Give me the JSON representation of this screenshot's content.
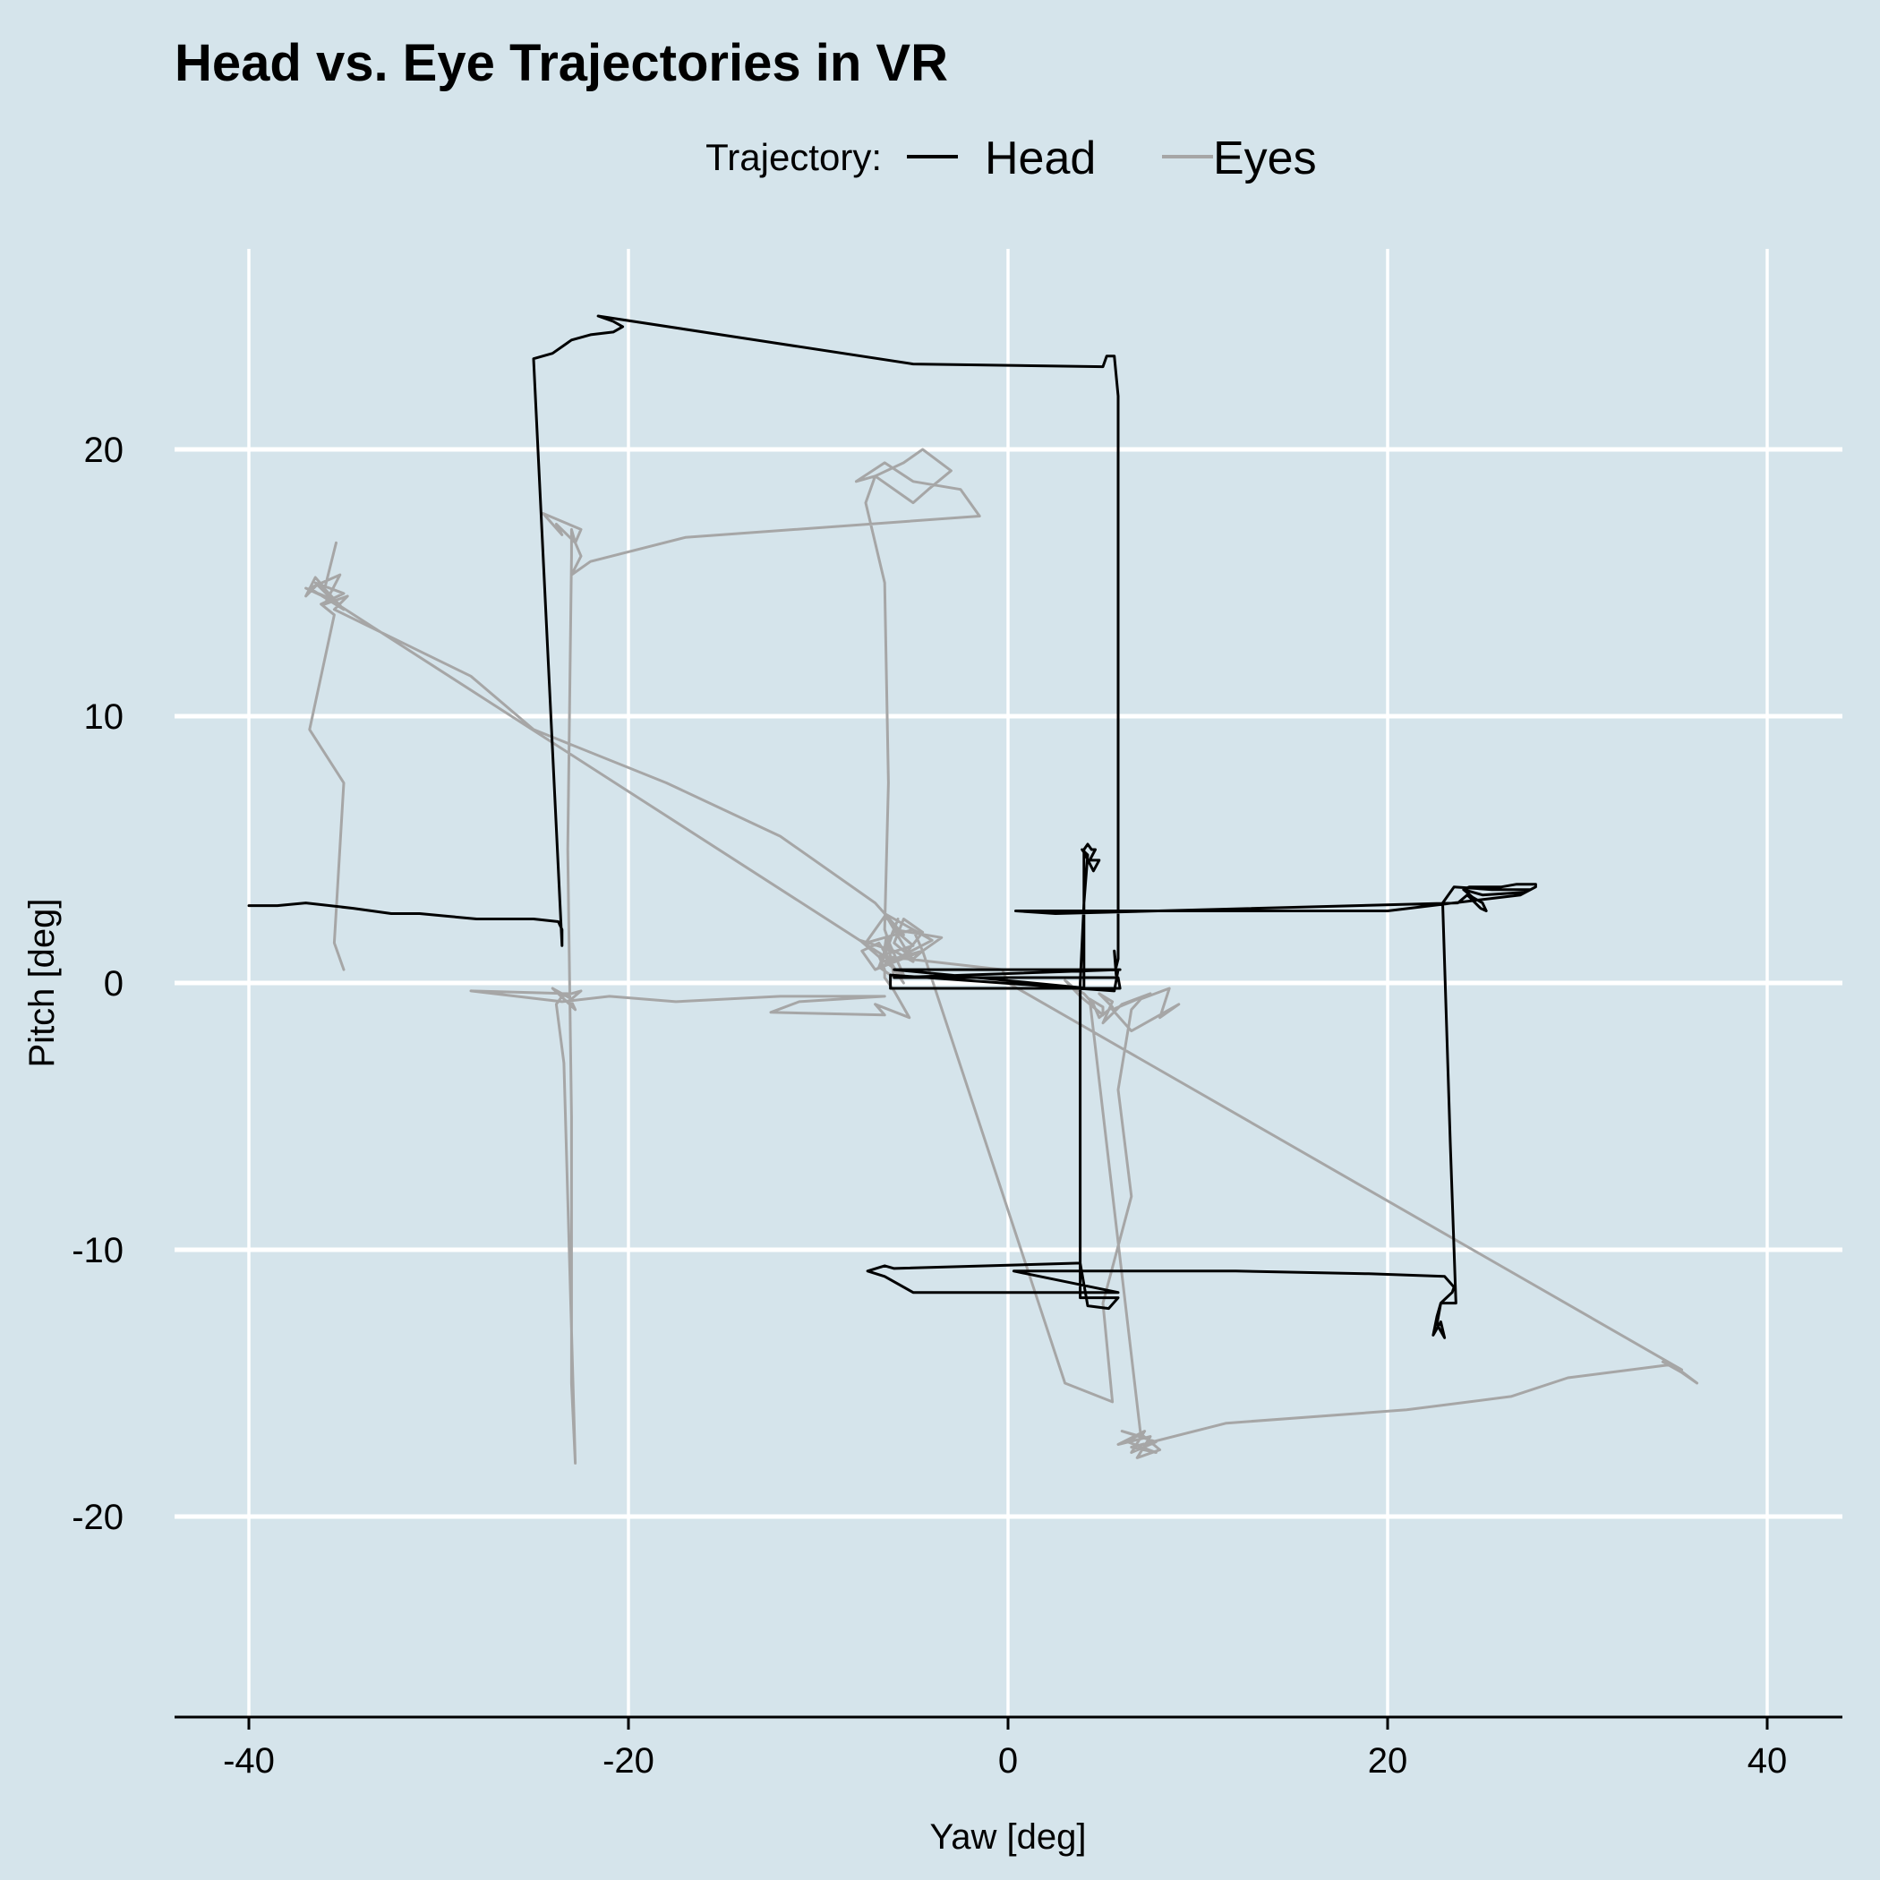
{
  "chart_data": {
    "type": "line",
    "title": "Head vs. Eye Trajectories in VR",
    "xlabel": "Yaw [deg]",
    "ylabel": "Pitch [deg]",
    "xlim": [
      -44,
      44
    ],
    "ylim": [
      -27.5,
      28.5
    ],
    "x_ticks": [
      -40,
      -20,
      0,
      20,
      40
    ],
    "x_tick_labels": [
      "-40",
      "-20",
      "0",
      "20",
      "40"
    ],
    "y_ticks": [
      -20,
      -10,
      0,
      10,
      20
    ],
    "y_tick_labels": [
      "-20",
      "-10",
      "0",
      "10",
      "20"
    ],
    "grid": true,
    "legend": {
      "title": "Trajectory:",
      "position": "top",
      "entries": [
        "Head",
        "Eyes"
      ]
    },
    "series": [
      {
        "name": "Head",
        "color": "#000000",
        "x": [
          -40.0,
          -38.5,
          -37.0,
          -34.5,
          -32.5,
          -31.0,
          -29.5,
          -28.0,
          -26.5,
          -25.0,
          -23.7,
          -23.5,
          -23.5,
          -25.0,
          -24.0,
          -23.0,
          -22.0,
          -20.8,
          -20.3,
          -20.8,
          -21.6,
          -5.0,
          5.0,
          5.2,
          5.6,
          5.8,
          5.8,
          5.8,
          5.8,
          5.8,
          5.8,
          5.7,
          5.6,
          5.7,
          5.8,
          5.6,
          -6.0,
          5.9,
          5.9,
          -6.0,
          5.8,
          5.9,
          -6.2,
          -6.2,
          5.6,
          4.0,
          4.0,
          4.0,
          4.0,
          4.2,
          4.4,
          4.6,
          4.3,
          4.8,
          4.5,
          4.0,
          3.9,
          4.2,
          4.0,
          3.8,
          3.8,
          3.8,
          3.8,
          5.8,
          5.3,
          4.2,
          3.8,
          -6.0,
          -6.5,
          -7.4,
          -6.5,
          -5.0,
          5.8,
          0.3,
          12.0,
          19.0,
          23.0,
          23.5,
          23.4,
          23.1,
          22.8,
          22.6,
          22.4,
          22.8,
          23.0,
          22.6,
          22.8,
          23.6,
          23.3,
          22.9,
          23.5,
          25.5,
          27.5,
          27.2,
          25.0,
          24.0,
          24.5,
          25.0,
          25.2,
          24.9,
          24.2,
          23.7,
          2.5,
          0.4,
          8.0,
          20.0,
          27.0,
          27.8,
          27.8,
          26.8,
          26.0,
          24.3,
          24.0
        ],
        "y": [
          2.9,
          2.9,
          3.0,
          2.8,
          2.6,
          2.6,
          2.5,
          2.4,
          2.4,
          2.4,
          2.3,
          2.0,
          1.4,
          23.4,
          23.6,
          24.1,
          24.3,
          24.4,
          24.6,
          24.8,
          25.0,
          23.2,
          23.1,
          23.5,
          23.5,
          22.0,
          15.0,
          8.0,
          3.0,
          1.5,
          0.9,
          0.6,
          1.2,
          0.3,
          0.5,
          -0.3,
          0.5,
          0.5,
          0.5,
          0.2,
          0.2,
          -0.2,
          -0.2,
          0.3,
          -0.3,
          -0.2,
          2.0,
          4.0,
          5.0,
          5.2,
          5.0,
          5.0,
          4.6,
          4.6,
          4.2,
          4.9,
          5.0,
          4.8,
          3.0,
          0.0,
          -5.0,
          -10.0,
          -11.8,
          -11.8,
          -12.2,
          -12.1,
          -10.5,
          -10.7,
          -10.6,
          -10.8,
          -11.0,
          -11.6,
          -11.6,
          -10.8,
          -10.8,
          -10.9,
          -11.0,
          -11.4,
          -11.6,
          -11.8,
          -12.0,
          -12.5,
          -13.2,
          -12.7,
          -13.3,
          -12.8,
          -12.0,
          -12.0,
          -6.0,
          3.0,
          3.6,
          3.5,
          3.5,
          3.4,
          3.3,
          3.5,
          3.2,
          3.0,
          2.7,
          2.8,
          3.3,
          3.0,
          2.6,
          2.7,
          2.7,
          2.7,
          3.3,
          3.6,
          3.7,
          3.7,
          3.6,
          3.6,
          3.5
        ]
      },
      {
        "name": "Eyes",
        "color": "#a6a6a6",
        "x": [
          -35.4,
          -36.0,
          -36.5,
          -37.0,
          -36.3,
          -35.0,
          -36.8,
          -35.2,
          -36.0,
          -34.8,
          -35.5,
          -28.3,
          -25.0,
          -18.0,
          -12.0,
          -7.0,
          -5.5,
          -6.5,
          -7.5,
          -5.0,
          -4.5,
          -6.6,
          -6.4,
          -6.0,
          -6.8,
          -5.8,
          -6.5,
          -5.5,
          -6.8,
          -7.7,
          -7.0,
          -4.0,
          -6.5,
          -5.0,
          -6.0,
          -7.8,
          -6.5,
          -5.5,
          -6.2,
          -6.5,
          -6.3,
          -6.5,
          -7.5,
          -7.0,
          -5.5,
          -4.5,
          -3.0,
          -4.2,
          -5.0,
          -7.0,
          -8.0,
          -6.5,
          -5.0,
          -2.5,
          -1.5,
          -17.0,
          -22.0,
          -23.0,
          -22.5,
          -22.8,
          -22.5,
          -24.5,
          -23.5,
          -23.8,
          -22.8,
          -23.0,
          -23.0,
          -23.2,
          -23.0,
          -23.0,
          -23.0,
          -22.8,
          -23.4,
          -23.8,
          -23.5,
          -22.5,
          -23.0,
          -24.0,
          -22.8,
          -23.2,
          -28.3,
          -23.5,
          -21.0,
          -17.5,
          -12.0,
          -6.5,
          -11.0,
          -12.5,
          -6.5,
          -7.0,
          -5.2,
          -6.0,
          -6.5,
          -6.5,
          -6.8,
          -5.0,
          -6.0,
          -3.5,
          -4.5,
          -5.0,
          -6.0,
          -5.5,
          -4.5,
          -5.5,
          -7.0,
          -4.5,
          3.0,
          5.5,
          5.0,
          6.5,
          5.8,
          6.5,
          7.0,
          8.5,
          8.0,
          9.0,
          6.5,
          5.5,
          7.5,
          6.0,
          5.0,
          5.5,
          4.8,
          5.5,
          4.8,
          4.5,
          4.0,
          3.5,
          3.0,
          3.8,
          5.0,
          5.0,
          4.3,
          7.0,
          6.0,
          7.8,
          6.5,
          7.2,
          5.8,
          7.5,
          6.8,
          8.0,
          7.0,
          6.3,
          7.8,
          6.5,
          11.5,
          21.0,
          26.5,
          29.5,
          35.0,
          36.3,
          35.5,
          34.5,
          35.5,
          0.0,
          -0.3,
          -6.5,
          -36.0,
          -37.0,
          -35.5,
          -36.5,
          -35.0,
          -36.2,
          -35.5,
          -36.8,
          -35.0,
          -35.5,
          -35.0
        ],
        "y": [
          16.5,
          14.8,
          15.2,
          14.5,
          15.0,
          14.0,
          14.8,
          15.3,
          14.2,
          14.5,
          14.0,
          11.5,
          9.5,
          7.5,
          5.5,
          3.0,
          1.8,
          2.5,
          1.5,
          2.0,
          1.2,
          0.8,
          1.8,
          0.2,
          0.6,
          2.4,
          1.0,
          0.0,
          1.5,
          1.2,
          0.5,
          1.6,
          2.6,
          0.8,
          1.2,
          1.6,
          0.8,
          0.3,
          1.4,
          2.0,
          7.5,
          15.0,
          18.0,
          19.0,
          19.5,
          20.0,
          19.2,
          18.5,
          18.0,
          19.0,
          18.8,
          19.5,
          18.8,
          18.5,
          17.5,
          16.7,
          15.8,
          15.3,
          16.0,
          16.5,
          17.0,
          17.6,
          16.8,
          17.2,
          16.5,
          17.0,
          16.0,
          5.0,
          -5.0,
          -10.0,
          -15.0,
          -18.0,
          -3.0,
          -0.8,
          -0.5,
          -0.3,
          -0.6,
          -0.2,
          -1.0,
          -0.4,
          -0.3,
          -0.7,
          -0.5,
          -0.7,
          -0.5,
          -0.5,
          -0.7,
          -1.1,
          -1.2,
          -0.8,
          -1.3,
          -0.3,
          0.2,
          0.5,
          1.0,
          1.4,
          2.0,
          1.7,
          1.2,
          0.9,
          1.5,
          2.4,
          1.9,
          1.0,
          0.5,
          1.2,
          -15.0,
          -15.7,
          -12.0,
          -8.0,
          -4.0,
          -1.0,
          -0.6,
          -0.2,
          -1.3,
          -0.8,
          -1.8,
          -1.0,
          -0.4,
          -0.8,
          -1.5,
          -0.7,
          -0.4,
          -0.9,
          -1.3,
          -0.8,
          -0.4,
          -0.2,
          0.1,
          -0.5,
          -1.2,
          -0.9,
          -0.6,
          -17.0,
          -16.8,
          -17.2,
          -17.6,
          -16.8,
          -17.3,
          -17.0,
          -17.8,
          -17.5,
          -16.9,
          -17.2,
          -17.6,
          -17.4,
          -16.5,
          -16.0,
          -15.5,
          -14.8,
          -14.3,
          -15.0,
          -14.6,
          -14.2,
          -14.5,
          0.0,
          0.5,
          1.0,
          14.5,
          14.8,
          14.3,
          15.0,
          14.6,
          14.2,
          13.8,
          9.5,
          7.5,
          1.5,
          0.5
        ]
      }
    ]
  }
}
